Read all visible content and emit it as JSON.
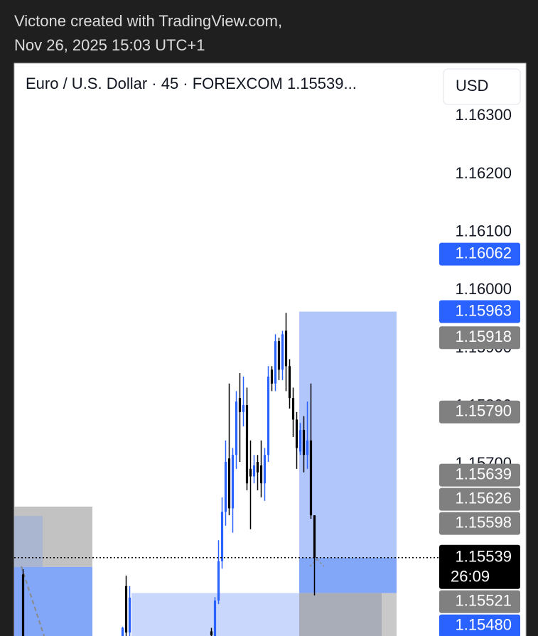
{
  "header": {
    "author_line": "Victone created with TradingView.com,",
    "date_line": "Nov 26, 2025 15:03 UTC+1"
  },
  "chart_data": {
    "type": "candlestick",
    "title": "Euro / U.S. Dollar · 45 · FOREXCOM  1.15539...",
    "currency_button": "USD",
    "xlim": [
      -0.5,
      143.5
    ],
    "ylim": [
      1.15404,
      1.16391
    ],
    "yticks": [
      {
        "value": 1.163,
        "label": "1.16300"
      },
      {
        "value": 1.162,
        "label": "1.16200"
      },
      {
        "value": 1.161,
        "label": "1.16100"
      },
      {
        "value": 1.16,
        "label": "1.16000"
      },
      {
        "value": 1.159,
        "label": "1.15900"
      },
      {
        "value": 1.158,
        "label": "1.15800"
      },
      {
        "value": 1.157,
        "label": "1.15700"
      }
    ],
    "up_color": "#2962ff",
    "down_color": "#000000",
    "candles": {
      "x": [
        2,
        30,
        31,
        32,
        55,
        56,
        57,
        58,
        59,
        60,
        61,
        62,
        63,
        64,
        65,
        66,
        67,
        68,
        69,
        70,
        71,
        72,
        73,
        74,
        75,
        76,
        77,
        78,
        79,
        80,
        81,
        82,
        83,
        84
      ],
      "open": [
        1.1551,
        1.154,
        1.1549,
        1.1541,
        1.15412,
        1.15404,
        1.15465,
        1.15533,
        1.15618,
        1.1571,
        1.15624,
        1.15716,
        1.15814,
        1.1579,
        1.15802,
        1.15692,
        1.15679,
        1.15704,
        1.15698,
        1.15667,
        1.15716,
        1.15863,
        1.15839,
        1.15912,
        1.15863,
        1.1593,
        1.15869,
        1.15814,
        1.15777,
        1.15722,
        1.15759,
        1.15716,
        1.15741,
        1.15612
      ],
      "high": [
        1.15519,
        1.1542,
        1.15508,
        1.1549,
        1.15418,
        1.15471,
        1.15569,
        1.15643,
        1.15741,
        1.15839,
        1.15728,
        1.15826,
        1.15857,
        1.15851,
        1.15832,
        1.15741,
        1.15716,
        1.15716,
        1.15741,
        1.15728,
        1.15869,
        1.15869,
        1.15924,
        1.15918,
        1.1593,
        1.15961,
        1.15881,
        1.15832,
        1.1579,
        1.15771,
        1.15783,
        1.15808,
        1.15839,
        1.15612
      ],
      "low": [
        1.1539,
        1.15395,
        1.15395,
        1.154,
        1.154,
        1.15404,
        1.15459,
        1.1552,
        1.15594,
        1.15612,
        1.15582,
        1.15692,
        1.15704,
        1.15765,
        1.15655,
        1.15588,
        1.15667,
        1.15655,
        1.15643,
        1.15637,
        1.15704,
        1.15826,
        1.15826,
        1.15845,
        1.15845,
        1.15826,
        1.15796,
        1.15747,
        1.15692,
        1.15716,
        1.15686,
        1.15692,
        1.15606,
        1.15474
      ],
      "close": [
        1.154,
        1.15418,
        1.1541,
        1.1547,
        1.15405,
        1.15465,
        1.15533,
        1.15618,
        1.15704,
        1.15624,
        1.15716,
        1.15808,
        1.1579,
        1.15802,
        1.15667,
        1.15679,
        1.15698,
        1.15686,
        1.15667,
        1.15716,
        1.15851,
        1.15839,
        1.15912,
        1.15863,
        1.15924,
        1.15869,
        1.15814,
        1.15777,
        1.15728,
        1.15759,
        1.15716,
        1.15741,
        1.15612,
        1.15539
      ]
    },
    "zones": [
      {
        "from": -0.5,
        "to": 21.5,
        "top": 1.15627,
        "bottom": 1.15523,
        "color": "#c2c2c2"
      },
      {
        "from": -0.5,
        "to": 7.5,
        "top": 1.15611,
        "bottom": 1.15523,
        "color": "#aab6cf"
      },
      {
        "from": -0.5,
        "to": 21.5,
        "top": 1.15523,
        "bottom": 1.15404,
        "color": "#82a6f8"
      },
      {
        "from": 32.5,
        "to": 79.7,
        "top": 1.15478,
        "bottom": 1.15404,
        "color": "#c8d7fb"
      },
      {
        "from": 79.7,
        "to": 107.1,
        "top": 1.15963,
        "bottom": 1.15539,
        "color": "#b1c6fb"
      },
      {
        "from": 79.7,
        "to": 107.1,
        "top": 1.15539,
        "bottom": 1.15478,
        "color": "#83a7f8"
      },
      {
        "from": 79.7,
        "to": 102.9,
        "top": 1.15478,
        "bottom": 1.15404,
        "color": "#a8adb7"
      },
      {
        "from": 102.9,
        "to": 107.1,
        "top": 1.15478,
        "bottom": 1.15404,
        "color": "#c9c9c9"
      }
    ],
    "price_labels": [
      {
        "value": 1.16062,
        "label": "1.16062",
        "color": "#2962ff"
      },
      {
        "value": 1.15963,
        "label": "1.15963",
        "color": "#2962ff"
      },
      {
        "value": 1.15918,
        "label": "1.15918",
        "color": "#808080"
      },
      {
        "value": 1.1579,
        "label": "1.15790",
        "color": "#808080"
      },
      {
        "value": 1.15639,
        "label": "1.15639",
        "color": "#808080"
      },
      {
        "value": 1.15626,
        "label": "1.15626",
        "color": "#808080"
      },
      {
        "value": 1.15598,
        "label": "1.15598",
        "color": "#808080"
      },
      {
        "value": 1.15539,
        "label": "1.15539",
        "color": "#000000",
        "countdown": "26:09"
      },
      {
        "value": 1.15521,
        "label": "1.15521",
        "color": "#808080"
      },
      {
        "value": 1.1548,
        "label": "1.15480",
        "color": "#2962ff"
      }
    ]
  }
}
